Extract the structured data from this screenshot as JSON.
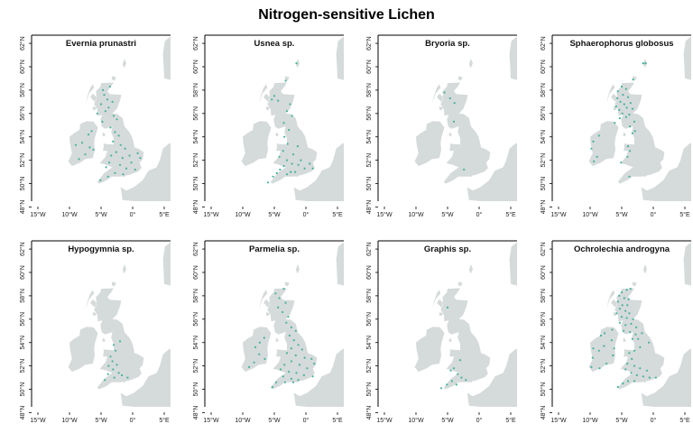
{
  "title": "Nitrogen-sensitive Lichen",
  "colors": {
    "land": "#d5dada",
    "point": "#45b39d",
    "frame": "#000000"
  },
  "axes": {
    "lon_range": [
      -16,
      6
    ],
    "lat_range": [
      48.5,
      62.7
    ],
    "x_ticks": [
      {
        "v": -15,
        "label": "15°W"
      },
      {
        "v": -10,
        "label": "10°W"
      },
      {
        "v": -5,
        "label": "5°W"
      },
      {
        "v": 0,
        "label": "0°"
      },
      {
        "v": 5,
        "label": "5°E"
      }
    ],
    "y_ticks": [
      {
        "v": 48,
        "label": "48°N"
      },
      {
        "v": 50,
        "label": "50°N"
      },
      {
        "v": 52,
        "label": "52°N"
      },
      {
        "v": 54,
        "label": "54°N"
      },
      {
        "v": 56,
        "label": "56°N"
      },
      {
        "v": 58,
        "label": "58°N"
      },
      {
        "v": 60,
        "label": "60°N"
      },
      {
        "v": 62,
        "label": "62°N"
      }
    ]
  },
  "panels": [
    {
      "name": "Evernia prunastri",
      "points": [
        [
          -4.5,
          57.6
        ],
        [
          -4.0,
          57.2
        ],
        [
          -3.2,
          57.0
        ],
        [
          -5.0,
          56.8
        ],
        [
          -3.8,
          56.5
        ],
        [
          -4.3,
          56.2
        ],
        [
          -3.0,
          55.8
        ],
        [
          -2.5,
          55.5
        ],
        [
          -4.8,
          55.3
        ],
        [
          -3.5,
          54.8
        ],
        [
          -2.8,
          54.4
        ],
        [
          -2.2,
          54.1
        ],
        [
          -3.1,
          53.6
        ],
        [
          -1.9,
          53.3
        ],
        [
          -1.2,
          53.0
        ],
        [
          -2.6,
          52.7
        ],
        [
          -3.4,
          52.4
        ],
        [
          -1.6,
          52.2
        ],
        [
          -0.5,
          52.4
        ],
        [
          0.8,
          52.6
        ],
        [
          1.2,
          52.2
        ],
        [
          -0.2,
          51.8
        ],
        [
          -2.0,
          51.6
        ],
        [
          -3.7,
          51.8
        ],
        [
          -4.2,
          51.4
        ],
        [
          -1.0,
          51.3
        ],
        [
          0.4,
          51.2
        ],
        [
          -2.8,
          50.9
        ],
        [
          -3.9,
          50.6
        ],
        [
          -5.1,
          50.3
        ],
        [
          -1.5,
          50.8
        ],
        [
          -6.5,
          54.5
        ],
        [
          -7.0,
          54.2
        ],
        [
          -8.0,
          53.5
        ],
        [
          -9.0,
          53.3
        ],
        [
          -6.8,
          53.1
        ],
        [
          -7.5,
          52.5
        ],
        [
          -8.5,
          52.1
        ],
        [
          -6.2,
          52.9
        ],
        [
          -4.7,
          58.0
        ],
        [
          -3.6,
          58.3
        ],
        [
          -5.6,
          56.0
        ]
      ]
    },
    {
      "name": "Usnea sp.",
      "points": [
        [
          -1.5,
          60.3
        ],
        [
          -3.2,
          58.8
        ],
        [
          -5.0,
          57.5
        ],
        [
          -5.4,
          57.2
        ],
        [
          -4.4,
          57.1
        ],
        [
          -3.0,
          56.2
        ],
        [
          -2.2,
          55.8
        ],
        [
          -3.5,
          55.2
        ],
        [
          -2.7,
          54.6
        ],
        [
          -3.4,
          54.0
        ],
        [
          -2.9,
          53.4
        ],
        [
          -3.6,
          52.8
        ],
        [
          -4.2,
          52.3
        ],
        [
          -3.0,
          52.0
        ],
        [
          -2.2,
          51.7
        ],
        [
          -1.2,
          51.6
        ],
        [
          -0.2,
          51.3
        ],
        [
          -3.5,
          51.5
        ],
        [
          -4.1,
          51.2
        ],
        [
          -4.6,
          50.9
        ],
        [
          -5.2,
          50.6
        ],
        [
          -3.0,
          50.8
        ],
        [
          -2.4,
          51.0
        ],
        [
          -1.7,
          51.0
        ],
        [
          -0.8,
          52.0
        ],
        [
          0.6,
          51.7
        ],
        [
          1.1,
          51.3
        ],
        [
          -6.0,
          50.1
        ],
        [
          -2.0,
          52.5
        ],
        [
          -1.3,
          53.2
        ],
        [
          -2.5,
          56.8
        ]
      ]
    },
    {
      "name": "Bryoria sp.",
      "points": [
        [
          -5.5,
          57.8
        ],
        [
          -4.6,
          57.3
        ],
        [
          -3.9,
          56.9
        ],
        [
          -4.0,
          55.3
        ],
        [
          -2.4,
          51.2
        ]
      ]
    },
    {
      "name": "Sphaerophorus globosus",
      "points": [
        [
          -1.6,
          60.3
        ],
        [
          -1.2,
          60.3
        ],
        [
          -3.2,
          58.9
        ],
        [
          -5.0,
          58.3
        ],
        [
          -4.3,
          58.1
        ],
        [
          -5.6,
          57.9
        ],
        [
          -4.8,
          57.6
        ],
        [
          -5.7,
          57.3
        ],
        [
          -4.0,
          57.4
        ],
        [
          -5.2,
          57.0
        ],
        [
          -4.6,
          56.8
        ],
        [
          -5.9,
          56.6
        ],
        [
          -3.6,
          56.9
        ],
        [
          -4.2,
          56.5
        ],
        [
          -5.4,
          56.3
        ],
        [
          -3.3,
          56.4
        ],
        [
          -4.9,
          56.0
        ],
        [
          -4.3,
          55.7
        ],
        [
          -3.8,
          55.9
        ],
        [
          -5.3,
          55.6
        ],
        [
          -3.0,
          55.3
        ],
        [
          -3.7,
          54.9
        ],
        [
          -2.9,
          54.5
        ],
        [
          -3.3,
          54.3
        ],
        [
          -4.0,
          53.2
        ],
        [
          -3.7,
          52.8
        ],
        [
          -4.1,
          52.3
        ],
        [
          -5.1,
          51.8
        ],
        [
          -3.8,
          50.6
        ],
        [
          -8.6,
          54.1
        ],
        [
          -9.5,
          53.6
        ],
        [
          -9.8,
          53.0
        ],
        [
          -8.9,
          52.3
        ],
        [
          -9.4,
          51.9
        ],
        [
          -6.1,
          55.2
        ]
      ]
    },
    {
      "name": "Hypogymnia sp.",
      "points": [
        [
          -3.0,
          53.8
        ],
        [
          -2.7,
          53.3
        ],
        [
          -3.5,
          52.8
        ],
        [
          -3.2,
          52.4
        ],
        [
          -2.5,
          52.1
        ],
        [
          -3.8,
          52.0
        ],
        [
          -3.1,
          51.7
        ],
        [
          -2.2,
          51.4
        ],
        [
          -1.7,
          51.2
        ],
        [
          -0.8,
          51.0
        ],
        [
          -3.9,
          51.3
        ],
        [
          -2.9,
          51.0
        ],
        [
          -2.0,
          54.1
        ],
        [
          -4.4,
          50.8
        ]
      ]
    },
    {
      "name": "Parmelia sp.",
      "points": [
        [
          -3.5,
          58.6
        ],
        [
          -4.8,
          58.2
        ],
        [
          -4.2,
          57.8
        ],
        [
          -3.2,
          57.4
        ],
        [
          -4.4,
          57.0
        ],
        [
          -3.7,
          56.6
        ],
        [
          -2.8,
          56.2
        ],
        [
          -3.1,
          55.7
        ],
        [
          -2.3,
          55.3
        ],
        [
          -1.6,
          55.0
        ],
        [
          -2.6,
          54.6
        ],
        [
          -1.9,
          54.2
        ],
        [
          -1.2,
          53.8
        ],
        [
          -2.3,
          53.5
        ],
        [
          -0.6,
          53.4
        ],
        [
          -3.0,
          53.1
        ],
        [
          -1.6,
          52.9
        ],
        [
          -0.2,
          52.7
        ],
        [
          0.9,
          52.6
        ],
        [
          1.3,
          52.2
        ],
        [
          -2.3,
          52.4
        ],
        [
          -3.4,
          52.1
        ],
        [
          -1.0,
          52.1
        ],
        [
          0.2,
          51.8
        ],
        [
          -4.0,
          51.7
        ],
        [
          -2.7,
          51.5
        ],
        [
          -1.5,
          51.4
        ],
        [
          -0.3,
          51.2
        ],
        [
          1.1,
          51.1
        ],
        [
          -3.6,
          51.1
        ],
        [
          -2.3,
          50.9
        ],
        [
          -1.2,
          50.8
        ],
        [
          -4.7,
          50.6
        ],
        [
          -3.3,
          50.6
        ],
        [
          -2.0,
          50.6
        ],
        [
          -5.3,
          50.2
        ],
        [
          -6.6,
          54.4
        ],
        [
          -7.3,
          54.0
        ],
        [
          -8.0,
          53.6
        ],
        [
          -7.4,
          53.0
        ],
        [
          -6.5,
          52.6
        ],
        [
          -8.2,
          52.3
        ],
        [
          -9.0,
          51.9
        ]
      ]
    },
    {
      "name": "Graphis sp.",
      "points": [
        [
          -5.0,
          57.0
        ],
        [
          -3.0,
          52.5
        ],
        [
          -4.0,
          51.8
        ],
        [
          -4.5,
          51.6
        ],
        [
          -3.4,
          51.3
        ],
        [
          -2.8,
          51.0
        ],
        [
          -4.3,
          50.7
        ],
        [
          -5.1,
          50.4
        ],
        [
          -3.6,
          50.4
        ],
        [
          -6.0,
          50.1
        ],
        [
          -2.1,
          50.8
        ]
      ]
    },
    {
      "name": "Ochrolechia androgyna",
      "points": [
        [
          -5.0,
          58.3
        ],
        [
          -4.2,
          58.5
        ],
        [
          -3.6,
          58.6
        ],
        [
          -5.4,
          58.0
        ],
        [
          -4.6,
          57.8
        ],
        [
          -3.9,
          57.7
        ],
        [
          -5.6,
          57.5
        ],
        [
          -4.9,
          57.2
        ],
        [
          -4.1,
          57.2
        ],
        [
          -5.3,
          56.9
        ],
        [
          -4.4,
          56.7
        ],
        [
          -5.8,
          56.5
        ],
        [
          -3.8,
          56.5
        ],
        [
          -5.0,
          56.2
        ],
        [
          -4.2,
          56.1
        ],
        [
          -3.2,
          56.0
        ],
        [
          -5.3,
          55.7
        ],
        [
          -4.4,
          55.5
        ],
        [
          -3.5,
          55.6
        ],
        [
          -2.7,
          55.3
        ],
        [
          -4.7,
          55.0
        ],
        [
          -3.7,
          54.9
        ],
        [
          -2.8,
          54.7
        ],
        [
          -3.3,
          54.3
        ],
        [
          -2.4,
          54.3
        ],
        [
          -2.1,
          53.6
        ],
        [
          -3.0,
          53.3
        ],
        [
          -3.8,
          53.1
        ],
        [
          -3.4,
          52.6
        ],
        [
          -4.1,
          52.2
        ],
        [
          -3.0,
          52.0
        ],
        [
          -2.1,
          51.8
        ],
        [
          -1.0,
          51.6
        ],
        [
          -4.4,
          51.7
        ],
        [
          -3.5,
          51.4
        ],
        [
          -2.6,
          51.2
        ],
        [
          -1.6,
          51.1
        ],
        [
          -0.6,
          51.0
        ],
        [
          0.4,
          51.0
        ],
        [
          -4.0,
          50.7
        ],
        [
          -3.0,
          50.7
        ],
        [
          -4.8,
          50.5
        ],
        [
          -5.6,
          50.2
        ],
        [
          -1.8,
          54.8
        ],
        [
          -0.7,
          54.0
        ],
        [
          -6.5,
          55.1
        ],
        [
          -7.7,
          54.8
        ],
        [
          -8.3,
          54.6
        ],
        [
          -6.6,
          54.2
        ],
        [
          -7.8,
          53.7
        ],
        [
          -8.6,
          53.3
        ],
        [
          -9.5,
          53.5
        ],
        [
          -9.6,
          52.7
        ],
        [
          -9.8,
          51.9
        ],
        [
          -8.5,
          51.8
        ],
        [
          -7.4,
          52.2
        ],
        [
          -6.4,
          52.9
        ],
        [
          -6.2,
          53.5
        ]
      ]
    }
  ]
}
